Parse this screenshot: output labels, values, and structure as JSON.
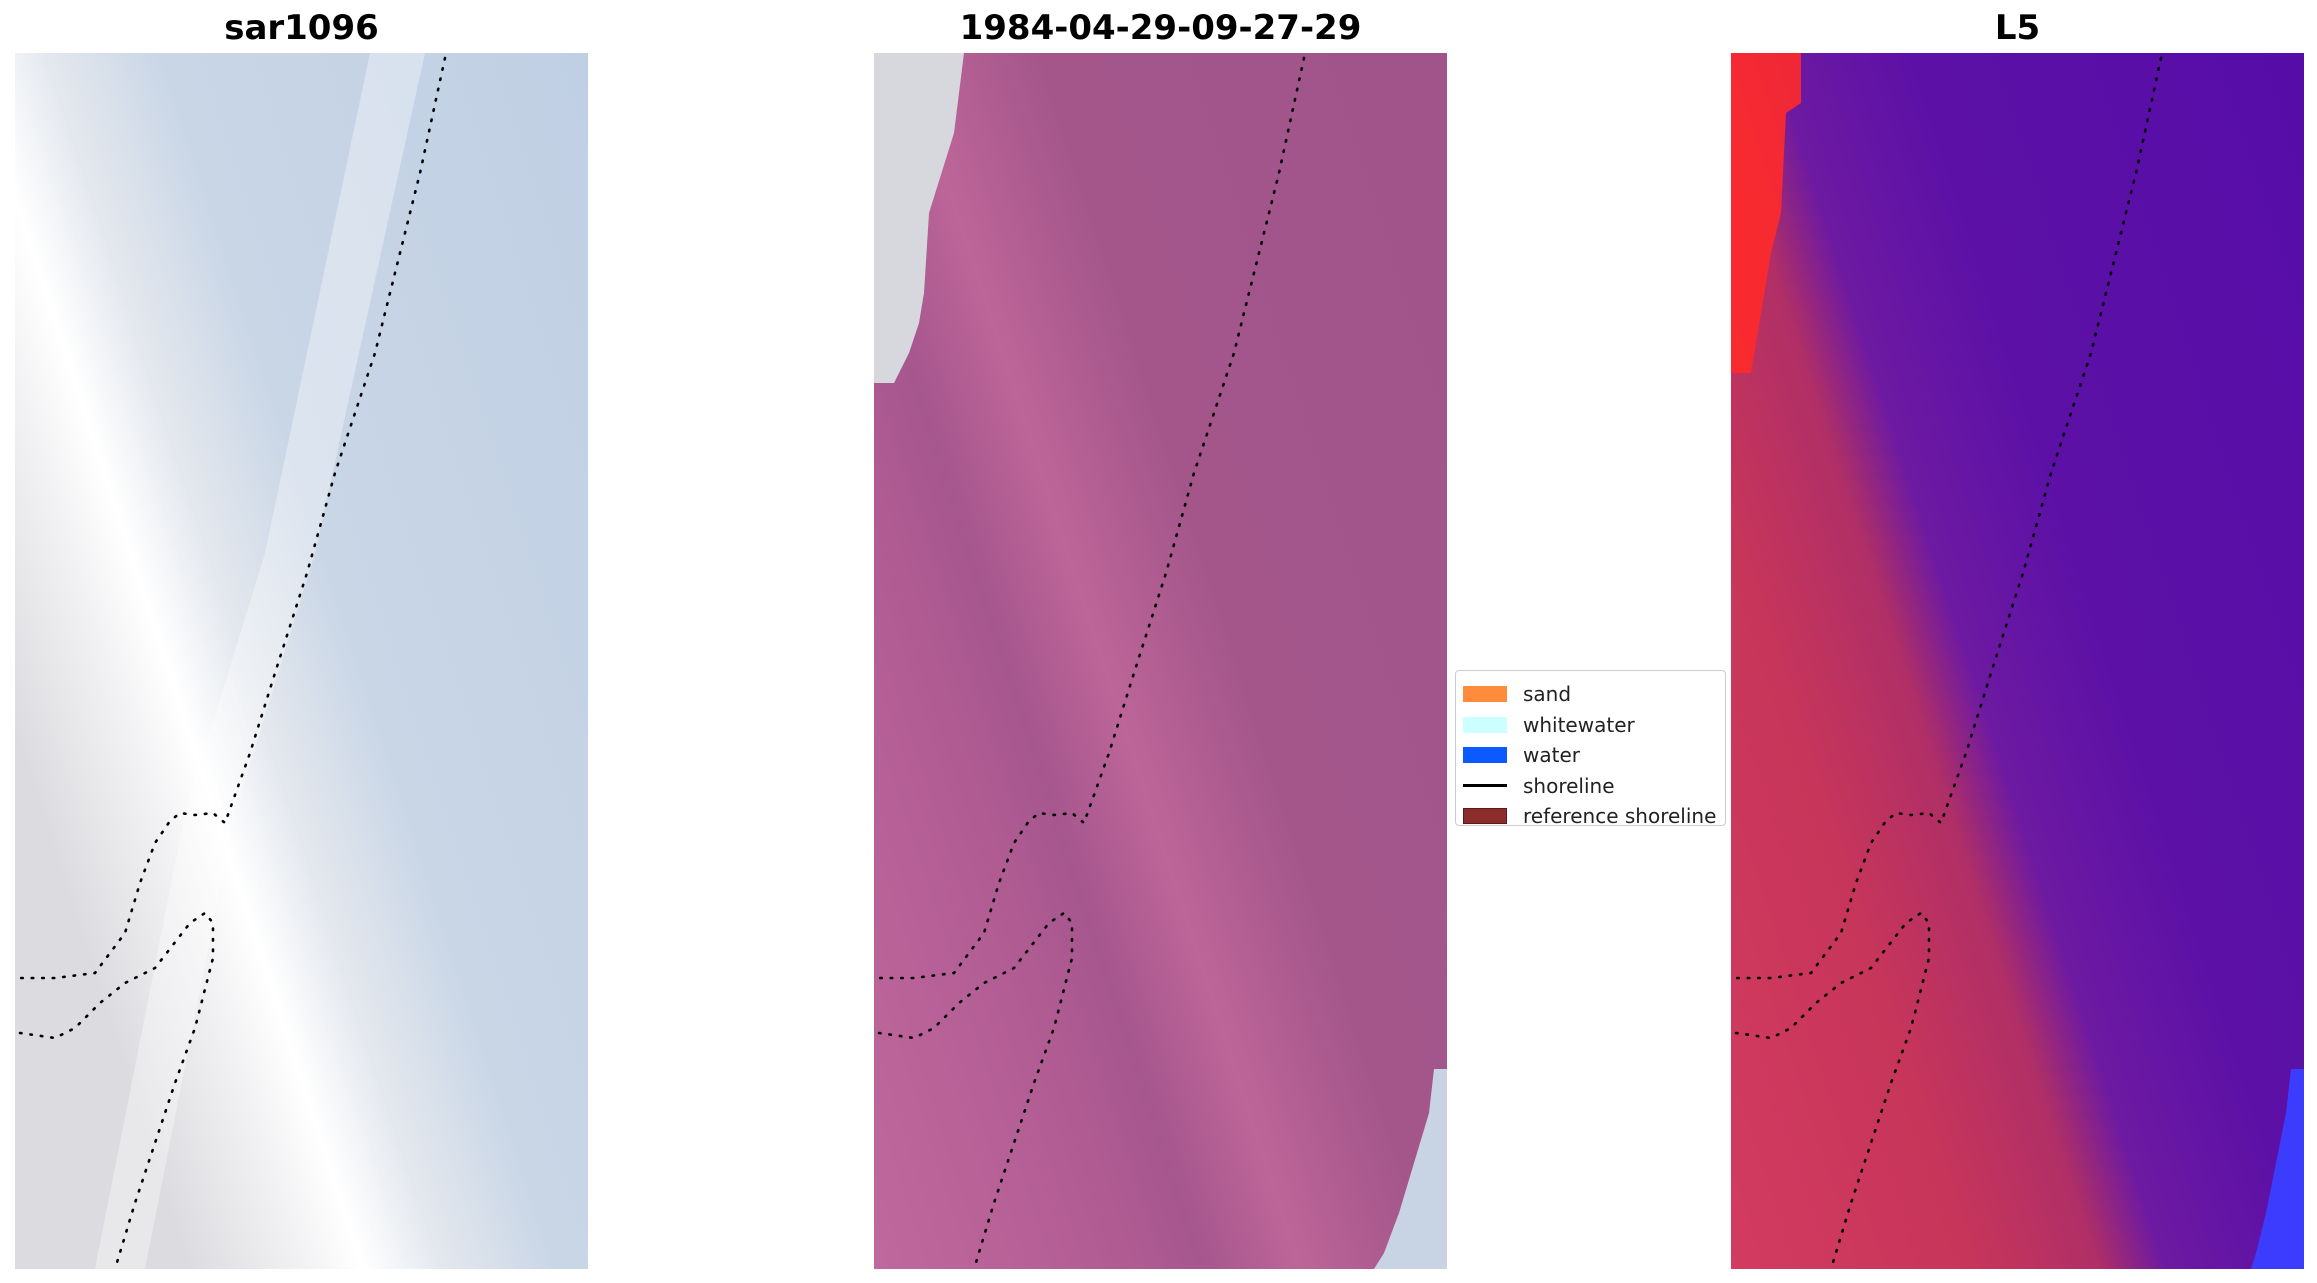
{
  "panels": [
    {
      "title": "sar1096",
      "style": "sar"
    },
    {
      "title": "1984-04-29-09-27-29",
      "style": "classified"
    },
    {
      "title": "L5",
      "style": "l5"
    }
  ],
  "legend": {
    "items": [
      {
        "label": "sand",
        "color": "#ff8c3c",
        "kind": "patch"
      },
      {
        "label": "whitewater",
        "color": "#ccffff",
        "kind": "patch"
      },
      {
        "label": "water",
        "color": "#0a5aff",
        "kind": "patch"
      },
      {
        "label": "shoreline",
        "color": "#000000",
        "kind": "line"
      },
      {
        "label": "reference shoreline",
        "color": "#8b2d2d",
        "kind": "patch"
      }
    ]
  }
}
